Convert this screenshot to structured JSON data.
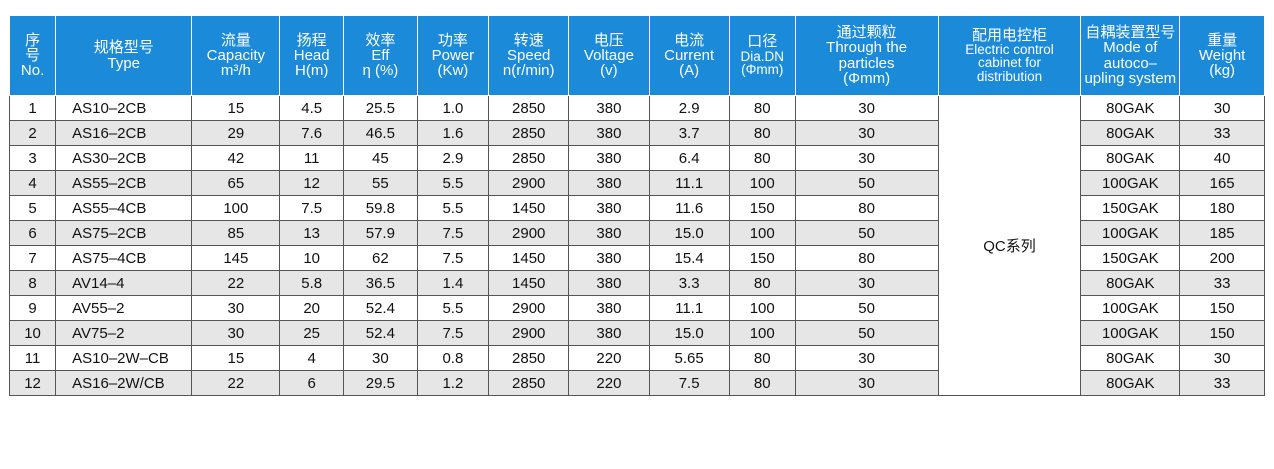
{
  "headers": {
    "no": [
      "序",
      "号",
      "No."
    ],
    "type": [
      "规格型号",
      "Type"
    ],
    "capacity": [
      "流量",
      "Capacity",
      "m³/h"
    ],
    "head": [
      "扬程",
      "Head",
      "H(m)"
    ],
    "eff": [
      "效率",
      "Eff",
      "η (%)"
    ],
    "power": [
      "功率",
      "Power",
      "(Kw)"
    ],
    "speed": [
      "转速",
      "Speed",
      "n(r/min)"
    ],
    "voltage": [
      "电压",
      "Voltage",
      "(v)"
    ],
    "current": [
      "电流",
      "Current",
      "(A)"
    ],
    "dia": [
      "口径",
      "Dia.DN",
      "(Φmm)"
    ],
    "particles": [
      "通过颗粒",
      "Through the",
      "particles",
      "(Φmm)"
    ],
    "cabinet": [
      "配用电控柜",
      "Electric control",
      "cabinet for",
      "distribution"
    ],
    "coupling": [
      "自耦装置型号",
      "Mode of",
      "autoco–",
      "upling system"
    ],
    "weight": [
      "重量",
      "Weight",
      "(kg)"
    ]
  },
  "cabinet_value": "QC系列",
  "rows": [
    {
      "no": "1",
      "type": "AS10–2CB",
      "capacity": "15",
      "head": "4.5",
      "eff": "25.5",
      "power": "1.0",
      "speed": "2850",
      "voltage": "380",
      "current": "2.9",
      "dia": "80",
      "particles": "30",
      "coupling": "80GAK",
      "weight": "30"
    },
    {
      "no": "2",
      "type": "AS16–2CB",
      "capacity": "29",
      "head": "7.6",
      "eff": "46.5",
      "power": "1.6",
      "speed": "2850",
      "voltage": "380",
      "current": "3.7",
      "dia": "80",
      "particles": "30",
      "coupling": "80GAK",
      "weight": "33"
    },
    {
      "no": "3",
      "type": "AS30–2CB",
      "capacity": "42",
      "head": "11",
      "eff": "45",
      "power": "2.9",
      "speed": "2850",
      "voltage": "380",
      "current": "6.4",
      "dia": "80",
      "particles": "30",
      "coupling": "80GAK",
      "weight": "40"
    },
    {
      "no": "4",
      "type": "AS55–2CB",
      "capacity": "65",
      "head": "12",
      "eff": "55",
      "power": "5.5",
      "speed": "2900",
      "voltage": "380",
      "current": "11.1",
      "dia": "100",
      "particles": "50",
      "coupling": "100GAK",
      "weight": "165"
    },
    {
      "no": "5",
      "type": "AS55–4CB",
      "capacity": "100",
      "head": "7.5",
      "eff": "59.8",
      "power": "5.5",
      "speed": "1450",
      "voltage": "380",
      "current": "11.6",
      "dia": "150",
      "particles": "80",
      "coupling": "150GAK",
      "weight": "180"
    },
    {
      "no": "6",
      "type": "AS75–2CB",
      "capacity": "85",
      "head": "13",
      "eff": "57.9",
      "power": "7.5",
      "speed": "2900",
      "voltage": "380",
      "current": "15.0",
      "dia": "100",
      "particles": "50",
      "coupling": "100GAK",
      "weight": "185"
    },
    {
      "no": "7",
      "type": "AS75–4CB",
      "capacity": "145",
      "head": "10",
      "eff": "62",
      "power": "7.5",
      "speed": "1450",
      "voltage": "380",
      "current": "15.4",
      "dia": "150",
      "particles": "80",
      "coupling": "150GAK",
      "weight": "200"
    },
    {
      "no": "8",
      "type": "AV14–4",
      "capacity": "22",
      "head": "5.8",
      "eff": "36.5",
      "power": "1.4",
      "speed": "1450",
      "voltage": "380",
      "current": "3.3",
      "dia": "80",
      "particles": "30",
      "coupling": "80GAK",
      "weight": "33"
    },
    {
      "no": "9",
      "type": "AV55–2",
      "capacity": "30",
      "head": "20",
      "eff": "52.4",
      "power": "5.5",
      "speed": "2900",
      "voltage": "380",
      "current": "11.1",
      "dia": "100",
      "particles": "50",
      "coupling": "100GAK",
      "weight": "150"
    },
    {
      "no": "10",
      "type": "AV75–2",
      "capacity": "30",
      "head": "25",
      "eff": "52.4",
      "power": "7.5",
      "speed": "2900",
      "voltage": "380",
      "current": "15.0",
      "dia": "100",
      "particles": "50",
      "coupling": "100GAK",
      "weight": "150"
    },
    {
      "no": "11",
      "type": "AS10–2W–CB",
      "capacity": "15",
      "head": "4",
      "eff": "30",
      "power": "0.8",
      "speed": "2850",
      "voltage": "220",
      "current": "5.65",
      "dia": "80",
      "particles": "30",
      "coupling": "80GAK",
      "weight": "30"
    },
    {
      "no": "12",
      "type": "AS16–2W/CB",
      "capacity": "22",
      "head": "6",
      "eff": "29.5",
      "power": "1.2",
      "speed": "2850",
      "voltage": "220",
      "current": "7.5",
      "dia": "80",
      "particles": "30",
      "coupling": "80GAK",
      "weight": "33"
    }
  ]
}
